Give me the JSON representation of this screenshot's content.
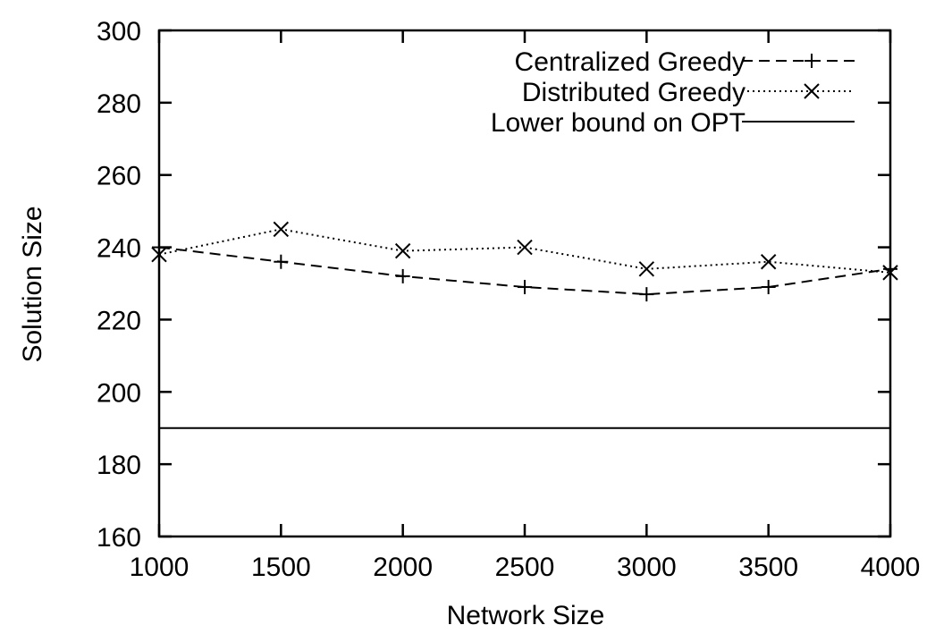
{
  "chart_data": {
    "type": "line",
    "xlabel": "Network Size",
    "ylabel": "Solution Size",
    "xlim": [
      1000,
      4000
    ],
    "ylim": [
      160,
      300
    ],
    "xticks": [
      1000,
      1500,
      2000,
      2500,
      3000,
      3500,
      4000
    ],
    "yticks": [
      160,
      180,
      200,
      220,
      240,
      260,
      280,
      300
    ],
    "grid": false,
    "legend_position": "top-right",
    "x": [
      1000,
      1500,
      2000,
      2500,
      3000,
      3500,
      4000
    ],
    "series": [
      {
        "name": "Centralized Greedy",
        "style": "dashed",
        "marker": "plus",
        "color": "#000000",
        "values": [
          240,
          236,
          232,
          229,
          227,
          229,
          234
        ]
      },
      {
        "name": "Distributed Greedy",
        "style": "dotted",
        "marker": "cross",
        "color": "#000000",
        "values": [
          238,
          245,
          239,
          240,
          234,
          236,
          233
        ]
      },
      {
        "name": "Lower bound on OPT",
        "style": "solid",
        "marker": "none",
        "color": "#000000",
        "values": [
          190,
          190,
          190,
          190,
          190,
          190,
          190
        ]
      }
    ]
  }
}
